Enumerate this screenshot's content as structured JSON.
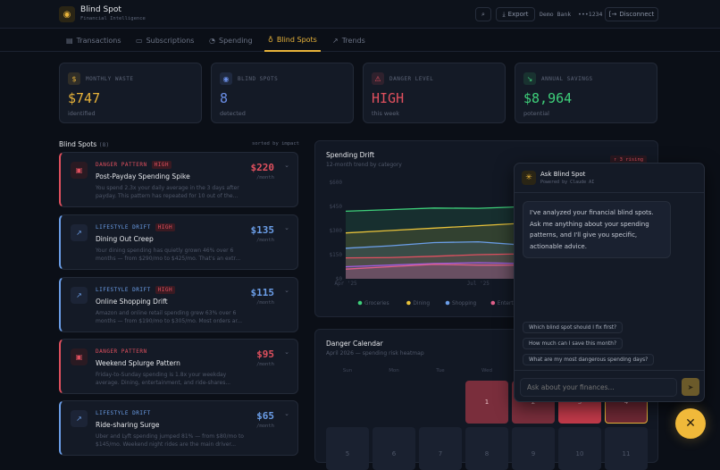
{
  "header": {
    "title": "Blind Spot",
    "subtitle": "Financial Intelligence",
    "export": "Export",
    "bank": "Demo Bank  •••1234",
    "disconnect": "Disconnect"
  },
  "nav": {
    "tabs": [
      {
        "label": "Transactions",
        "icon": "receipt-icon"
      },
      {
        "label": "Subscriptions",
        "icon": "card-icon"
      },
      {
        "label": "Spending",
        "icon": "pie-icon"
      },
      {
        "label": "Blind Spots",
        "icon": "lightbulb-icon",
        "active": true
      },
      {
        "label": "Trends",
        "icon": "trend-icon"
      }
    ]
  },
  "stats": [
    {
      "label": "MONTHLY WASTE",
      "value": "$747",
      "sub": "identified",
      "color": "#e8b33a",
      "icon": "dollar-icon"
    },
    {
      "label": "BLIND SPOTS",
      "value": "8",
      "sub": "detected",
      "color": "#6b8fe8",
      "icon": "eye-icon"
    },
    {
      "label": "DANGER LEVEL",
      "value": "HIGH",
      "sub": "this week",
      "color": "#e0505e",
      "icon": "warning-icon"
    },
    {
      "label": "ANNUAL SAVINGS",
      "value": "$8,964",
      "sub": "potential",
      "color": "#3ecf7a",
      "icon": "trend-down-icon"
    }
  ],
  "blindspots": {
    "title": "Blind Spots",
    "count": "(8)",
    "sort": "sorted by impact",
    "items": [
      {
        "category": "DANGER PATTERN",
        "badge": "HIGH",
        "title": "Post-Payday Spending Spike",
        "desc": "You spend 2.3x your daily average in the 3 days after payday. This pattern has repeated for 10 out of the...",
        "amount": "$220",
        "per": "/month",
        "kind": "danger"
      },
      {
        "category": "LIFESTYLE DRIFT",
        "badge": "HIGH",
        "title": "Dining Out Creep",
        "desc": "Your dining spending has quietly grown 46% over 6 months — from $290/mo to $425/mo. That's an extr...",
        "amount": "$135",
        "per": "/month",
        "kind": "drift"
      },
      {
        "category": "LIFESTYLE DRIFT",
        "badge": "HIGH",
        "title": "Online Shopping Drift",
        "desc": "Amazon and online retail spending grew 63% over 6 months — from $190/mo to $305/mo. Most orders ar...",
        "amount": "$115",
        "per": "/month",
        "kind": "drift"
      },
      {
        "category": "DANGER PATTERN",
        "badge": "",
        "title": "Weekend Splurge Pattern",
        "desc": "Friday-to-Sunday spending is 1.8x your weekday average. Dining, entertainment, and ride-shares...",
        "amount": "$95",
        "per": "/month",
        "kind": "danger"
      },
      {
        "category": "LIFESTYLE DRIFT",
        "badge": "",
        "title": "Ride-sharing Surge",
        "desc": "Uber and Lyft spending jumped 81% — from $80/mo to $145/mo. Weekend night rides are the main driver...",
        "amount": "$65",
        "per": "/month",
        "kind": "drift"
      }
    ]
  },
  "drift": {
    "title": "Spending Drift",
    "subtitle": "12-month trend by category",
    "rising": "↑ 3 rising"
  },
  "chart_data": {
    "type": "area",
    "x": [
      "Apr '25",
      "May '25",
      "Jun '25",
      "Jul '25",
      "Aug '25",
      "Sep '25",
      "Oct '25",
      "Nov '25"
    ],
    "xticks": [
      "Apr '25",
      "Jul '25",
      "Oct '25"
    ],
    "yticks": [
      "$0",
      "$150",
      "$300",
      "$450",
      "$600"
    ],
    "ylim": [
      0,
      600
    ],
    "legend_position": "bottom",
    "series": [
      {
        "name": "Groceries",
        "color": "#3ecf7a",
        "values": [
          420,
          430,
          440,
          438,
          448,
          452,
          458,
          462
        ]
      },
      {
        "name": "Dining",
        "color": "#e8c23a",
        "values": [
          285,
          300,
          315,
          330,
          345,
          370,
          385,
          395
        ]
      },
      {
        "name": "Shopping",
        "color": "#6b9ee8",
        "values": [
          190,
          205,
          225,
          230,
          210,
          250,
          265,
          270
        ]
      },
      {
        "name": "",
        "color": "#e05060",
        "values": [
          130,
          132,
          140,
          150,
          155,
          155,
          160,
          165
        ]
      },
      {
        "name": "",
        "color": "#a05ce0",
        "values": [
          75,
          85,
          95,
          100,
          95,
          110,
          120,
          125
        ]
      },
      {
        "name": "Entertainment",
        "color": "#e0608a",
        "values": [
          60,
          75,
          90,
          85,
          85,
          90,
          70,
          70
        ]
      }
    ]
  },
  "calendar": {
    "title": "Danger Calendar",
    "subtitle": "April 2026 — spending risk heatmap",
    "days": [
      "Sun",
      "Mon",
      "Tue",
      "Wed",
      "Thu",
      "Fri",
      "Sat"
    ],
    "row1": [
      "",
      "",
      "",
      "1",
      "2",
      "3",
      "4"
    ],
    "row2": [
      "5",
      "6",
      "7",
      "8",
      "9",
      "10",
      "11"
    ]
  },
  "chat": {
    "title": "Ask Blind Spot",
    "subtitle": "Powered by Claude AI",
    "message": "I've analyzed your financial blind spots. Ask me anything about your spending patterns, and I'll give you specific, actionable advice.",
    "suggestions": [
      "Which blind spot should I fix first?",
      "How much can I save this month?",
      "What are my most dangerous spending days?"
    ],
    "placeholder": "Ask about your finances..."
  }
}
